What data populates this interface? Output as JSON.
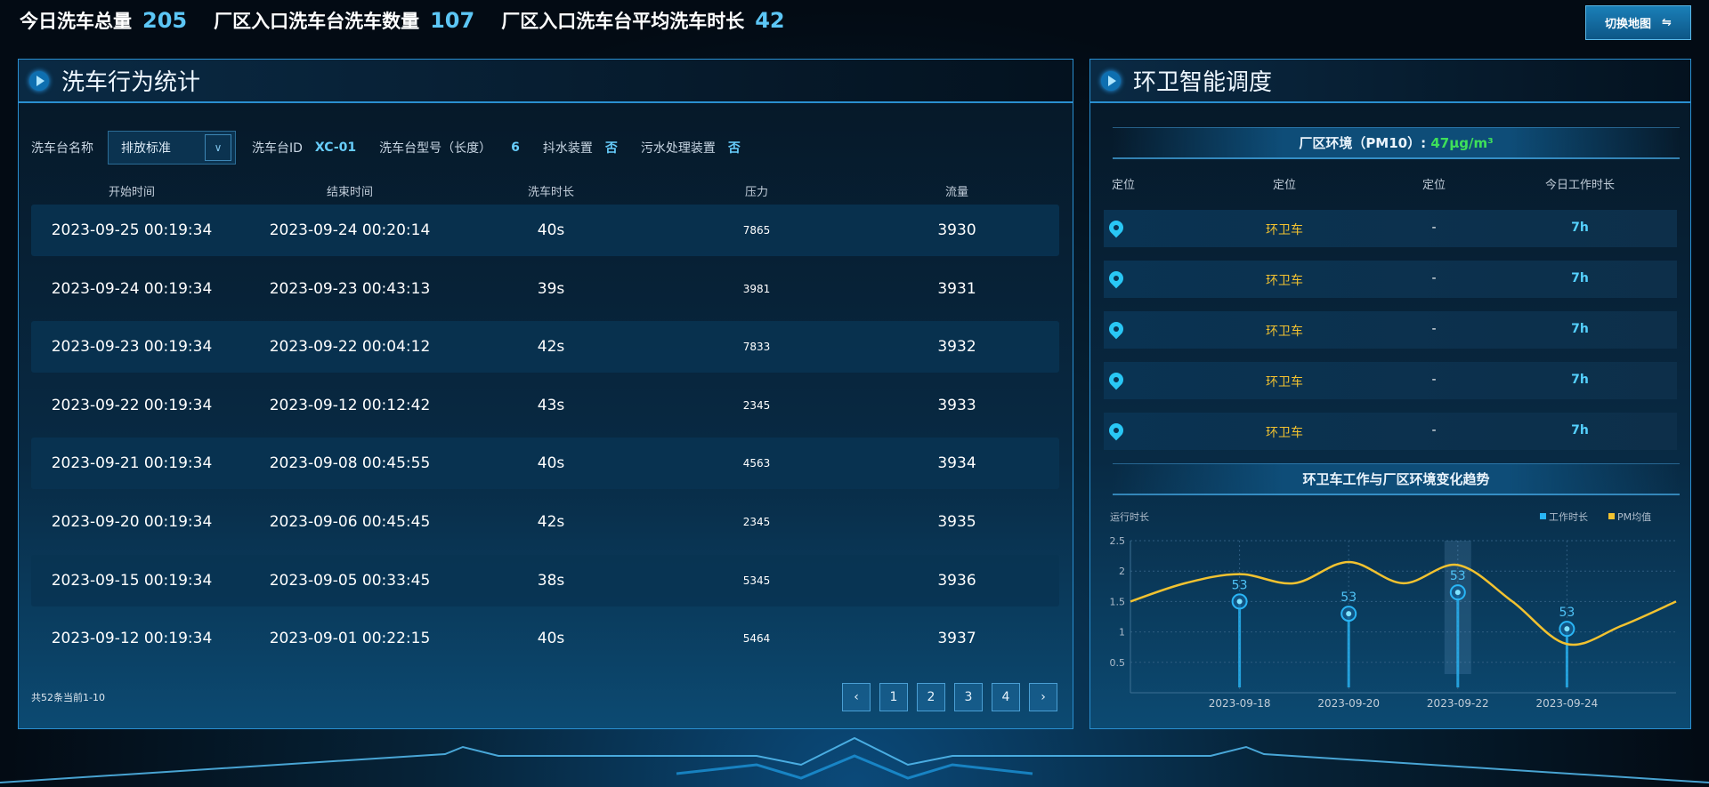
{
  "stats": [
    {
      "label": "今日洗车总量",
      "value": "205"
    },
    {
      "label": "厂区入口洗车台洗车数量",
      "value": "107"
    },
    {
      "label": "厂区入口洗车台平均洗车时长",
      "value": "42"
    }
  ],
  "switch_button": {
    "label": "切换地图",
    "icon": "swap-arrows-icon"
  },
  "left": {
    "title": "洗车行为统计",
    "filter": {
      "name_label": "洗车台名称",
      "name_value": "排放标准",
      "id_label": "洗车台ID",
      "id_value": "XC-01",
      "model_label": "洗车台型号（长度）",
      "model_value": "6",
      "shake_label": "抖水装置",
      "shake_value": "否",
      "sewage_label": "污水处理装置",
      "sewage_value": "否"
    },
    "columns": [
      "开始时间",
      "结束时间",
      "洗车时长",
      "压力",
      "流量"
    ],
    "rows": [
      [
        "2023-09-25 00:19:34",
        "2023-09-24 00:20:14",
        "40s",
        "7865",
        "3930"
      ],
      [
        "2023-09-24 00:19:34",
        "2023-09-23 00:43:13",
        "39s",
        "3981",
        "3931"
      ],
      [
        "2023-09-23 00:19:34",
        "2023-09-22 00:04:12",
        "42s",
        "7833",
        "3932"
      ],
      [
        "2023-09-22 00:19:34",
        "2023-09-12 00:12:42",
        "43s",
        "2345",
        "3933"
      ],
      [
        "2023-09-21 00:19:34",
        "2023-09-08 00:45:55",
        "40s",
        "4563",
        "3934"
      ],
      [
        "2023-09-20 00:19:34",
        "2023-09-06 00:45:45",
        "42s",
        "2345",
        "3935"
      ],
      [
        "2023-09-15 00:19:34",
        "2023-09-05 00:33:45",
        "38s",
        "5345",
        "3936"
      ],
      [
        "2023-09-12 00:19:34",
        "2023-09-01 00:22:15",
        "40s",
        "5464",
        "3937"
      ]
    ],
    "footer": "共52条当前1-10",
    "pagination": {
      "prev": "‹",
      "pages": [
        "1",
        "2",
        "3",
        "4"
      ],
      "next": "›"
    }
  },
  "right": {
    "title": "环卫智能调度",
    "env_label": "厂区环境（PM10）:",
    "env_value": "47μg/m³",
    "columns": [
      "定位",
      "定位",
      "定位",
      "今日工作时长"
    ],
    "rows": [
      {
        "icon": "location-pin-icon",
        "type": "环卫车",
        "pos": "-",
        "hours": "7h"
      },
      {
        "icon": "location-pin-icon",
        "type": "环卫车",
        "pos": "-",
        "hours": "7h"
      },
      {
        "icon": "location-pin-icon",
        "type": "环卫车",
        "pos": "-",
        "hours": "7h"
      },
      {
        "icon": "location-pin-icon",
        "type": "环卫车",
        "pos": "-",
        "hours": "7h"
      },
      {
        "icon": "location-pin-icon",
        "type": "环卫车",
        "pos": "-",
        "hours": "7h"
      }
    ],
    "chart_title": "环卫车工作与厂区环境变化趋势"
  },
  "chart_data": {
    "type": "line",
    "ylabel": "运行时长",
    "ylim": [
      0,
      2.5
    ],
    "yticks": [
      "0.5",
      "1",
      "1.5",
      "2",
      "2.5"
    ],
    "x": [
      "2023-09-16",
      "2023-09-17",
      "2023-09-18",
      "2023-09-19",
      "2023-09-20",
      "2023-09-21",
      "2023-09-22",
      "2023-09-23",
      "2023-09-24",
      "2023-09-25",
      "2023-09-26"
    ],
    "xtick_labels": [
      "2023-09-18",
      "2023-09-20",
      "2023-09-22",
      "2023-09-24"
    ],
    "grid": true,
    "legend": "top-right",
    "highlight": "2023-09-22",
    "series": [
      {
        "name": "工作时长",
        "kind": "lollipop",
        "color": "#29b6f6",
        "x": [
          "2023-09-18",
          "2023-09-20",
          "2023-09-22",
          "2023-09-24"
        ],
        "values": [
          1.5,
          1.3,
          1.65,
          1.05
        ],
        "labels": [
          "53",
          "53",
          "53",
          "53"
        ]
      },
      {
        "name": "PM均值",
        "kind": "smooth-line",
        "color": "#f2c230",
        "values": [
          1.5,
          1.8,
          1.95,
          1.8,
          2.15,
          1.8,
          2.1,
          1.5,
          0.8,
          1.1,
          1.5
        ]
      }
    ]
  }
}
